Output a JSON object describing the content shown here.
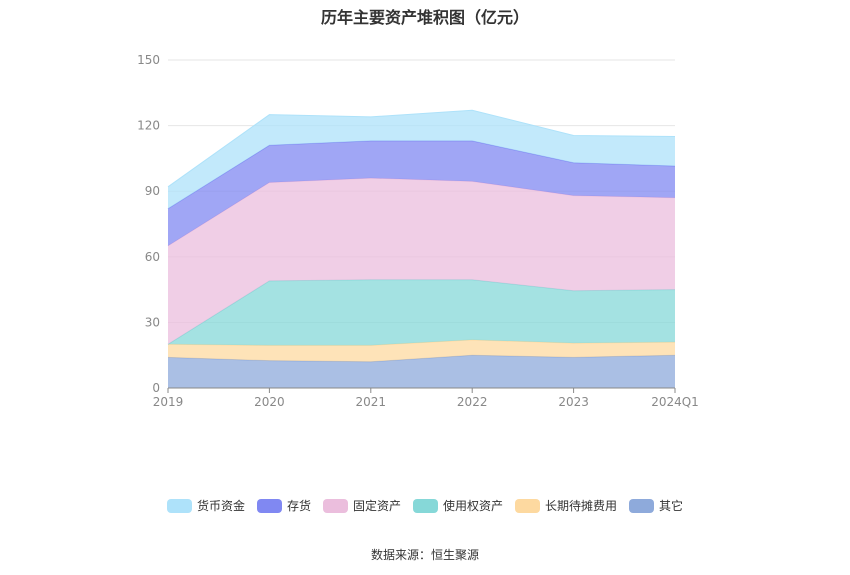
{
  "chart_data": {
    "type": "area",
    "stacked": true,
    "title": "历年主要资产堆积图（亿元）",
    "categories": [
      "2019",
      "2020",
      "2021",
      "2022",
      "2023",
      "2024Q1"
    ],
    "ylim": [
      0,
      150
    ],
    "yticks": [
      0,
      30,
      60,
      90,
      120,
      150
    ],
    "grid": true,
    "legend_position": "bottom",
    "series": [
      {
        "name": "其它",
        "color": "#8eaadb",
        "values": [
          14,
          12.5,
          12,
          15,
          14,
          15
        ]
      },
      {
        "name": "长期待摊费用",
        "color": "#fdd9a0",
        "values": [
          6,
          7,
          7.5,
          7,
          6.5,
          6
        ]
      },
      {
        "name": "使用权资产",
        "color": "#86d8d8",
        "values": [
          0,
          29.5,
          30,
          27.5,
          24,
          24
        ]
      },
      {
        "name": "固定资产",
        "color": "#ebbedd",
        "values": [
          45,
          45,
          46.5,
          45,
          43.5,
          42
        ]
      },
      {
        "name": "存货",
        "color": "#8088f2",
        "values": [
          17,
          17,
          17,
          18.5,
          15,
          14.5
        ]
      },
      {
        "name": "货币资金",
        "color": "#aee2fa",
        "values": [
          10,
          14,
          11,
          14,
          12.5,
          13.5
        ]
      }
    ]
  },
  "legend": [
    {
      "label": "货币资金",
      "color": "#aee2fa"
    },
    {
      "label": "存货",
      "color": "#8088f2"
    },
    {
      "label": "固定资产",
      "color": "#ebbedd"
    },
    {
      "label": "使用权资产",
      "color": "#86d8d8"
    },
    {
      "label": "长期待摊费用",
      "color": "#fdd9a0"
    },
    {
      "label": "其它",
      "color": "#8eaadb"
    }
  ],
  "source": "数据来源：恒生聚源"
}
